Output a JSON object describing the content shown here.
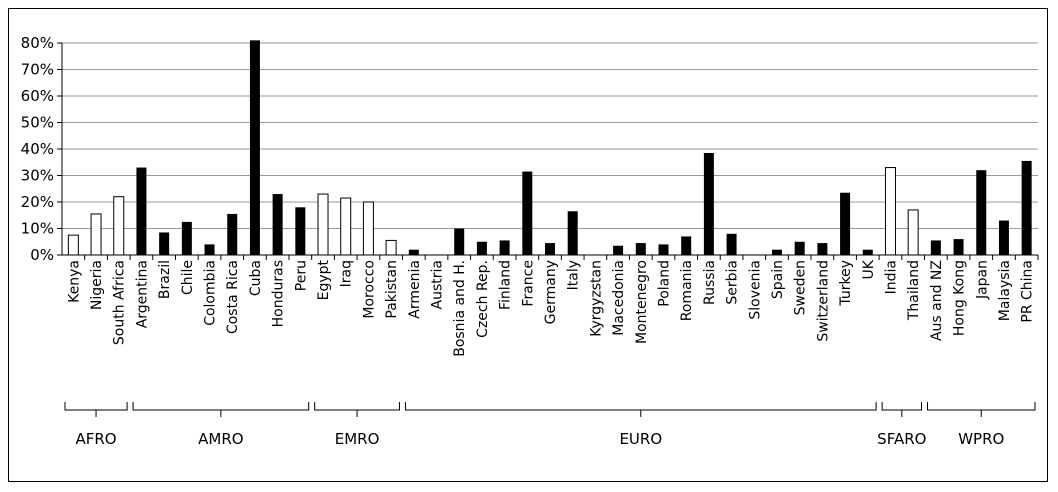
{
  "chart_data": {
    "type": "bar",
    "title": "",
    "xlabel": "",
    "ylabel": "",
    "ylim": [
      0,
      80
    ],
    "yticks": [
      "0%",
      "10%",
      "20%",
      "30%",
      "40%",
      "50%",
      "60%",
      "70%",
      "80%"
    ],
    "grid": true,
    "categories": [
      "Kenya",
      "Nigeria",
      "South Africa",
      "Argentina",
      "Brazil",
      "Chile",
      "Colombia",
      "Costa Rica",
      "Cuba",
      "Honduras",
      "Peru",
      "Egypt",
      "Iraq",
      "Morocco",
      "Pakistan",
      "Armenia",
      "Austria",
      "Bosnia and H.",
      "Czech Rep.",
      "Finland",
      "France",
      "Germany",
      "Italy",
      "Kyrgyzstan",
      "Macedonia",
      "Montenegro",
      "Poland",
      "Romania",
      "Russia",
      "Serbia",
      "Slovenia",
      "Spain",
      "Sweden",
      "Switzerland",
      "Turkey",
      "UK",
      "India",
      "Thailand",
      "Aus and NZ",
      "Hong Kong",
      "Japan",
      "Malaysia",
      "PR China"
    ],
    "values": [
      7.5,
      15.5,
      22,
      33,
      8.5,
      12.5,
      4,
      15.5,
      81,
      23,
      18,
      23,
      21.5,
      20,
      5.5,
      2,
      0,
      10,
      5,
      5.5,
      31.5,
      4.5,
      16.5,
      0,
      3.5,
      4.5,
      4,
      7,
      38.5,
      8,
      0,
      2,
      5,
      4.5,
      23.5,
      2,
      33,
      17,
      5.5,
      6,
      32,
      13,
      35.5
    ],
    "fills": [
      "open",
      "open",
      "open",
      "solid",
      "solid",
      "solid",
      "solid",
      "solid",
      "solid",
      "solid",
      "solid",
      "open",
      "open",
      "open",
      "open",
      "solid",
      "solid",
      "solid",
      "solid",
      "solid",
      "solid",
      "solid",
      "solid",
      "solid",
      "solid",
      "solid",
      "solid",
      "solid",
      "solid",
      "solid",
      "solid",
      "solid",
      "solid",
      "solid",
      "solid",
      "solid",
      "open",
      "open",
      "solid",
      "solid",
      "solid",
      "solid",
      "solid"
    ],
    "groups": [
      {
        "label": "AFRO",
        "start": 0,
        "end": 2
      },
      {
        "label": "AMRO",
        "start": 3,
        "end": 10
      },
      {
        "label": "EMRO",
        "start": 11,
        "end": 14
      },
      {
        "label": "EURO",
        "start": 15,
        "end": 35
      },
      {
        "label": "SFARO",
        "start": 36,
        "end": 37
      },
      {
        "label": "WPRO",
        "start": 38,
        "end": 42
      }
    ],
    "colors": {
      "bar_solid": "#000000",
      "bar_open": "#ffffff",
      "grid": "#9a9a9a"
    }
  }
}
